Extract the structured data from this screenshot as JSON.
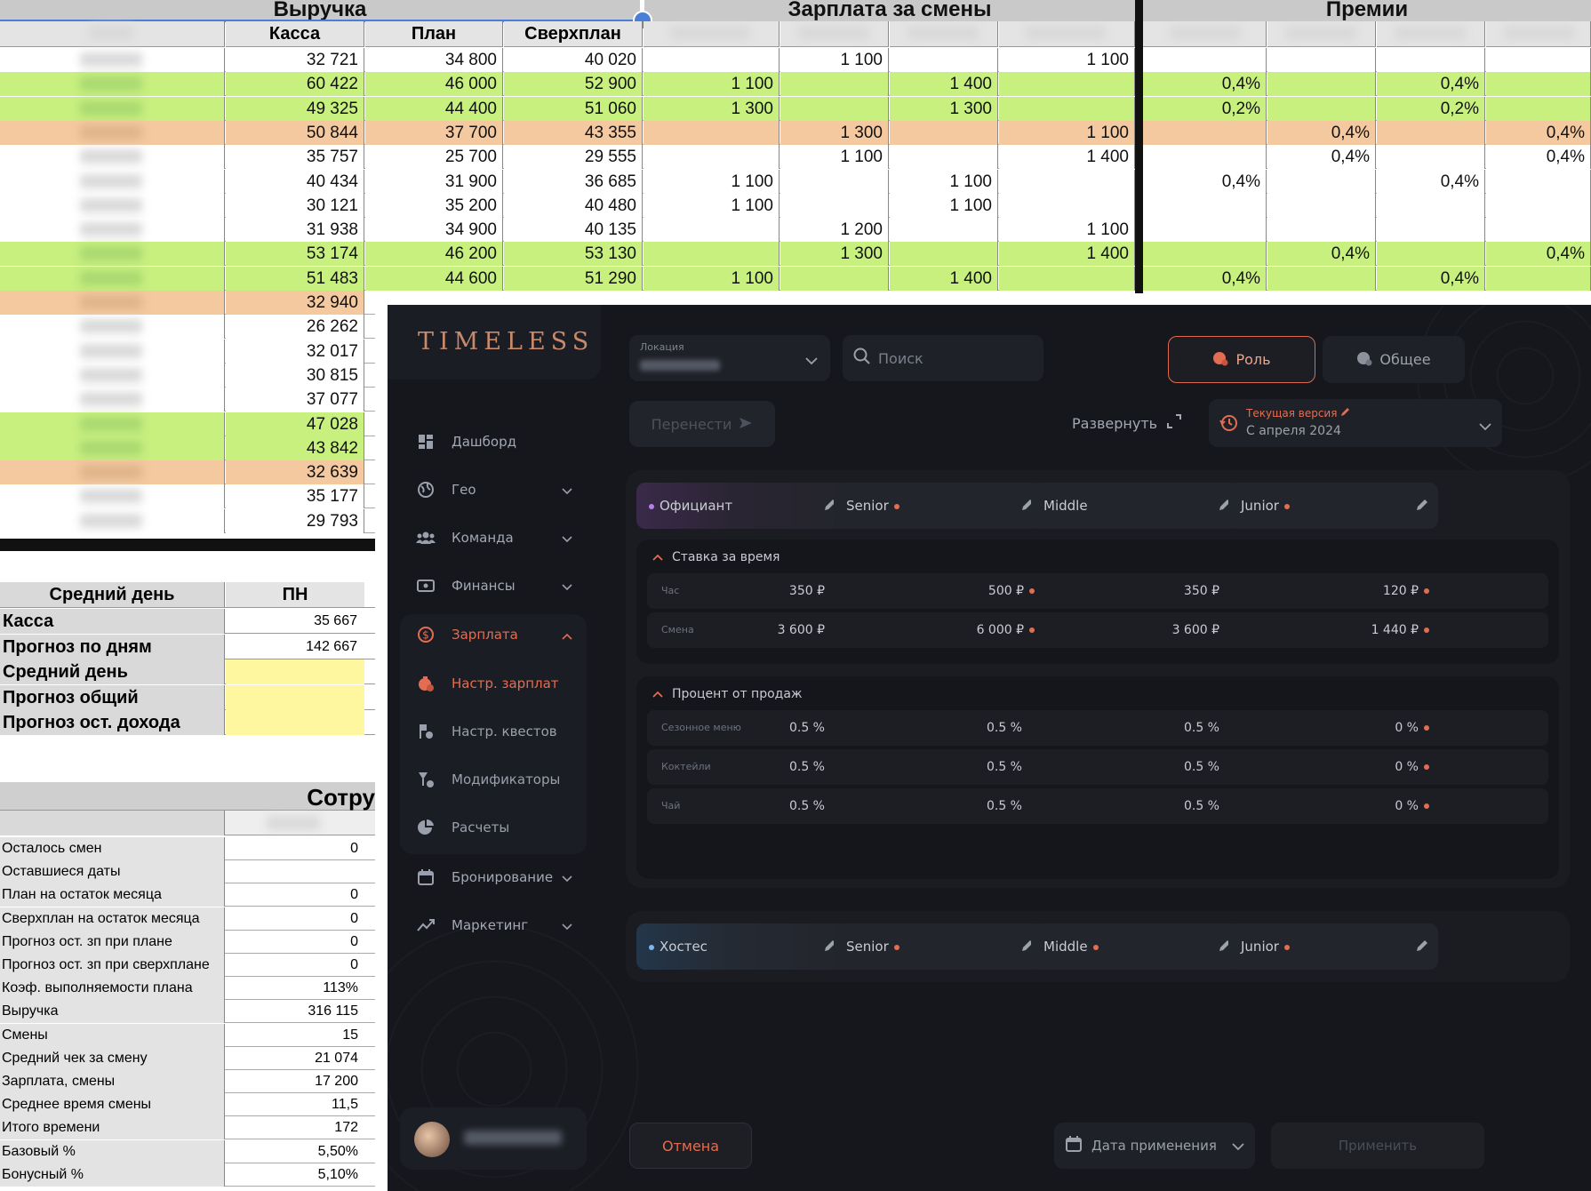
{
  "sheet": {
    "headers": {
      "revenue": "Выручка",
      "shift_pay": "Зарплата за смены",
      "bonuses": "Премии"
    },
    "cols": {
      "kassa": "Касса",
      "plan": "План",
      "overplan": "Сверхплан"
    },
    "rows": [
      {
        "k": "32 721",
        "p": "34 800",
        "s": "40 020",
        "z": [
          "",
          "1 100",
          "",
          "1 100"
        ],
        "b": [
          "",
          "",
          "",
          ""
        ],
        "c": "w"
      },
      {
        "k": "60 422",
        "p": "46 000",
        "s": "52 900",
        "z": [
          "1 100",
          "",
          "1 400",
          ""
        ],
        "b": [
          "0,4%",
          "",
          "0,4%",
          ""
        ],
        "c": "g"
      },
      {
        "k": "49 325",
        "p": "44 400",
        "s": "51 060",
        "z": [
          "1 300",
          "",
          "1 300",
          ""
        ],
        "b": [
          "0,2%",
          "",
          "0,2%",
          ""
        ],
        "c": "g"
      },
      {
        "k": "50 844",
        "p": "37 700",
        "s": "43 355",
        "z": [
          "",
          "1 300",
          "",
          "1 100"
        ],
        "b": [
          "",
          "0,4%",
          "",
          "0,4%"
        ],
        "c": "o"
      },
      {
        "k": "35 757",
        "p": "25 700",
        "s": "29 555",
        "z": [
          "",
          "1 100",
          "",
          "1 400"
        ],
        "b": [
          "",
          "0,4%",
          "",
          "0,4%"
        ],
        "c": "w"
      },
      {
        "k": "40 434",
        "p": "31 900",
        "s": "36 685",
        "z": [
          "1 100",
          "",
          "1 100",
          ""
        ],
        "b": [
          "0,4%",
          "",
          "0,4%",
          ""
        ],
        "c": "w"
      },
      {
        "k": "30 121",
        "p": "35 200",
        "s": "40 480",
        "z": [
          "1 100",
          "",
          "1 100",
          ""
        ],
        "b": [
          "",
          "",
          "",
          ""
        ],
        "c": "w"
      },
      {
        "k": "31 938",
        "p": "34 900",
        "s": "40 135",
        "z": [
          "",
          "1 200",
          "",
          "1 100"
        ],
        "b": [
          "",
          "",
          "",
          ""
        ],
        "c": "w"
      },
      {
        "k": "53 174",
        "p": "46 200",
        "s": "53 130",
        "z": [
          "",
          "1 300",
          "",
          "1 400"
        ],
        "b": [
          "",
          "0,4%",
          "",
          "0,4%"
        ],
        "c": "g"
      },
      {
        "k": "51 483",
        "p": "44 600",
        "s": "51 290",
        "z": [
          "1 100",
          "",
          "1 400",
          ""
        ],
        "b": [
          "0,4%",
          "",
          "0,4%",
          ""
        ],
        "c": "g"
      },
      {
        "k": "32 940",
        "c": "o"
      },
      {
        "k": "26 262",
        "c": "w"
      },
      {
        "k": "32 017",
        "c": "w"
      },
      {
        "k": "30 815",
        "c": "w"
      },
      {
        "k": "37 077",
        "c": "w"
      },
      {
        "k": "47 028",
        "c": "g"
      },
      {
        "k": "43 842",
        "c": "g"
      },
      {
        "k": "32 639",
        "c": "o"
      },
      {
        "k": "35 177",
        "c": "w"
      },
      {
        "k": "29 793",
        "c": "w"
      }
    ],
    "summary_header": {
      "label": "Средний день",
      "col": "ПН"
    },
    "summary": [
      {
        "label": "Касса",
        "value": "35 667"
      },
      {
        "label": "Прогноз по дням",
        "value": "142 667"
      },
      {
        "label": "Средний день",
        "value": ""
      },
      {
        "label": "Прогноз общий",
        "value": ""
      },
      {
        "label": "Прогноз ост. дохода",
        "value": ""
      }
    ],
    "staff_header": "Сотру",
    "stats": [
      {
        "label": "Осталось смен",
        "value": "0"
      },
      {
        "label": "Оставшиеся даты",
        "value": ""
      },
      {
        "label": "План на остаток месяца",
        "value": "0"
      },
      {
        "label": "Сверхплан на остаток месяца",
        "value": "0"
      },
      {
        "label": "Прогноз ост. зп при плане",
        "value": "0"
      },
      {
        "label": "Прогноз ост. зп при сверхплане",
        "value": "0"
      },
      {
        "label": "Коэф. выполняемости плана",
        "value": "113%"
      },
      {
        "label": "Выручка",
        "value": "316 115"
      },
      {
        "label": "Смены",
        "value": "15"
      },
      {
        "label": "Средний чек за смену",
        "value": "21 074"
      },
      {
        "label": "Зарплата, смены",
        "value": "17 200"
      },
      {
        "label": "Среднее время смены",
        "value": "11,5"
      },
      {
        "label": "Итого времени",
        "value": "172"
      },
      {
        "label": "Базовый %",
        "value": "5,50%"
      },
      {
        "label": "Бонусный %",
        "value": "5,10%"
      }
    ]
  },
  "app": {
    "logo": "TIMELESS",
    "nav": [
      {
        "label": "Дашборд",
        "icon": "dashboard-icon"
      },
      {
        "label": "Гео",
        "icon": "globe-icon"
      },
      {
        "label": "Команда",
        "icon": "team-icon"
      },
      {
        "label": "Финансы",
        "icon": "money-icon"
      },
      {
        "label": "Зарплата",
        "icon": "salary-icon"
      },
      {
        "label": "Настр. зарплат",
        "icon": "salary-settings-icon"
      },
      {
        "label": "Настр. квестов",
        "icon": "quest-settings-icon"
      },
      {
        "label": "Модификаторы",
        "icon": "modifiers-icon"
      },
      {
        "label": "Расчеты",
        "icon": "calculations-icon"
      },
      {
        "label": "Бронирование",
        "icon": "booking-icon"
      },
      {
        "label": "Маркетинг",
        "icon": "marketing-icon"
      }
    ],
    "location_label": "Локация",
    "search_placeholder": "Поиск",
    "role_tab": "Роль",
    "general_tab": "Общее",
    "move_button": "Перенести",
    "expand_label": "Развернуть",
    "version_title": "Текущая версия",
    "version_date": "С апреля 2024",
    "role1": {
      "cards": [
        "Официант",
        "Senior",
        "Middle",
        "Junior"
      ],
      "time_section": "Ставка за время",
      "time_rows": [
        {
          "label": "Час",
          "values": [
            "350 ₽",
            "500 ₽",
            "350 ₽",
            "120 ₽"
          ]
        },
        {
          "label": "Смена",
          "values": [
            "3 600 ₽",
            "6 000 ₽",
            "3 600 ₽",
            "1 440 ₽"
          ]
        }
      ],
      "sales_section": "Процент от продаж",
      "sales_rows": [
        {
          "label": "Сезонное меню",
          "values": [
            "0.5 %",
            "0.5 %",
            "0.5 %",
            "0 %"
          ]
        },
        {
          "label": "Коктейли",
          "values": [
            "0.5 %",
            "0.5 %",
            "0.5 %",
            "0 %"
          ]
        },
        {
          "label": "Чай",
          "values": [
            "0.5 %",
            "0.5 %",
            "0.5 %",
            "0 %"
          ]
        }
      ]
    },
    "role2": {
      "cards": [
        "Хостес",
        "Senior",
        "Middle",
        "Junior"
      ]
    },
    "cancel_button": "Отмена",
    "date_placeholder": "Дата применения",
    "apply_button": "Применить"
  }
}
